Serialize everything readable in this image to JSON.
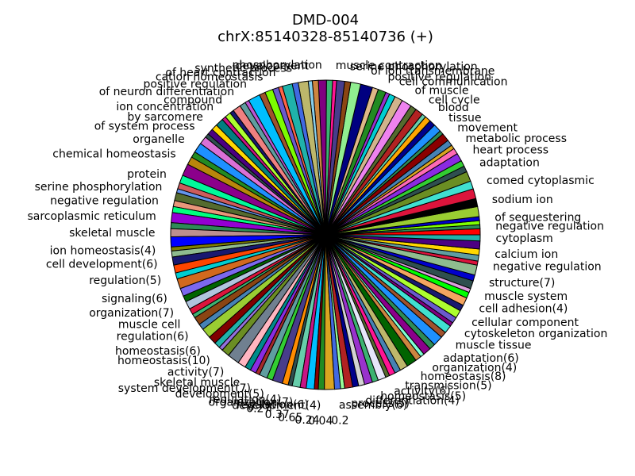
{
  "chart_data": {
    "type": "pie",
    "title": [
      "DMD-004",
      "chrX:85140328-85140736 (+)"
    ],
    "slice_count": 140,
    "outline_color": "#000000",
    "outside_labels": [
      "negative regulation",
      "of sequestering",
      "sodium ion",
      "comed cytoplasmic",
      "adaptation",
      "heart process",
      "metabolic process",
      "movement",
      "tissue",
      "blood",
      "cell cycle",
      "of muscle",
      "cell communication",
      "positive regulation",
      "of ion transmembrane",
      "serine phosphorylation",
      "muscle contraction",
      "phosphorylation",
      "development",
      "synthetic process",
      "of heart contraction",
      "cation homeostasis",
      "positive regulation",
      "of neuron differentiation",
      "compound",
      "ion concentration",
      "by sarcomere",
      "of system process",
      "organelle",
      "chemical homeostasis",
      "protein",
      "serine phosphorylation",
      "negative regulation",
      "sarcoplasmic reticulum",
      "skeletal muscle",
      "ion homeostasis(4)",
      "cell development(6)",
      "regulation(5)",
      "signaling(6)",
      "organization(7)",
      "muscle cell",
      "regulation(6)",
      "homeostasis(6)",
      "homeostasis(10)",
      "activity(7)",
      "skeletal muscle",
      "system development(7)",
      "development(5)",
      "regulation(4)",
      "organization(7)",
      "regulation(6)",
      "development(4)",
      "assembly(6)",
      "process(5)",
      "differentiation(4)",
      "homeostasis(5)",
      "activity(6)",
      "transmission(5)",
      "homeostasis(8)",
      "organization(4)",
      "adaptation(6)",
      "muscle tissue",
      "cytoskeleton organization",
      "cellular component",
      "cell adhesion(4)",
      "muscle system",
      "structure(7)",
      "negative regulation",
      "calcium ion",
      "cytoplasm"
    ],
    "value_labels": [
      "0.27",
      "0.37",
      "0.65",
      "0.24",
      "0.04",
      "0.2"
    ],
    "slice_colors": [
      "#ff0000",
      "#2e8b57",
      "#7fff00",
      "#0000cd",
      "#9acd32",
      "#000000",
      "#dc143c",
      "#40e0d0",
      "#6b8e23",
      "#2f4f4f",
      "#32cd32",
      "#8a2be2",
      "#ff69b4",
      "#daa520",
      "#4682b4",
      "#8b0000",
      "#2e8b57",
      "#1e90ff",
      "#00008b",
      "#ffa500",
      "#66cdaa",
      "#b22222",
      "#556b2f",
      "#ee82ee",
      "#d2b48c",
      "#00ced1",
      "#9932cc",
      "#228b22",
      "#deb887",
      "#000080",
      "#90ee90",
      "#8b4513",
      "#483d8b",
      "#ff1493",
      "#3cb371",
      "#800080",
      "#cd853f",
      "#87ceeb",
      "#bdb76b",
      "#4169e1",
      "#20b2aa",
      "#ff6347",
      "#6a5acd",
      "#7cfc00",
      "#a0522d",
      "#00bfff",
      "#ba55d3",
      "#5f9ea0",
      "#f08080",
      "#191970",
      "#adff2f",
      "#c71585",
      "#008080",
      "#ffd700",
      "#4b0082",
      "#2f4f4f",
      "#da70d6",
      "#1e90ff",
      "#228b22",
      "#b8860b",
      "#8b008b",
      "#00fa9a",
      "#cd5c5c",
      "#6495ed",
      "#556b2f",
      "#e9967a",
      "#00ff7f",
      "#9400d3",
      "#2e8b57",
      "#bc8f8f",
      "#0000ff",
      "#808000",
      "#8fbc8f",
      "#191970",
      "#ff4500",
      "#00ced1",
      "#d2691e",
      "#7b68ee",
      "#006400",
      "#b0c4de",
      "#dc143c",
      "#3cb371",
      "#8b4513",
      "#4682b4",
      "#9acd32",
      "#800000",
      "#20b2aa",
      "#9370db",
      "#6b8e23",
      "#708090",
      "#ffb6c1",
      "#008b8b",
      "#8a2be2",
      "#a52a2a",
      "#5f9ea0",
      "#32cd32",
      "#483d8b",
      "#ff8c00",
      "#2f4f4f",
      "#66cdaa",
      "#c71585",
      "#00bfff",
      "#8b0000",
      "#228b22",
      "#daa520",
      "#4169e1",
      "#98fb98",
      "#b22222",
      "#00008b",
      "#d3d3d3",
      "#9932cc",
      "#3cb371",
      "#e6e6fa",
      "#556b2f",
      "#ff1493",
      "#4682b4",
      "#bdb76b",
      "#006400",
      "#cd853f",
      "#7fffd4",
      "#8b008b",
      "#2e8b57",
      "#1e90ff",
      "#a0522d",
      "#40e0d0",
      "#800080",
      "#6a5acd",
      "#adff2f",
      "#191970",
      "#f4a460",
      "#00ff00",
      "#dda0dd",
      "#2f4f4f",
      "#0000cd",
      "#8fbc8f",
      "#dc143c",
      "#5f9ea0",
      "#ffd700",
      "#4b0082",
      "#20b2aa"
    ],
    "pie_values": [
      3,
      2,
      2,
      2,
      5,
      4,
      5,
      4,
      5,
      3,
      3,
      4,
      3,
      2,
      3,
      4,
      2,
      4,
      3,
      3,
      2,
      4,
      3,
      5,
      4,
      3,
      2,
      4,
      3,
      6,
      5,
      3,
      4,
      2,
      3,
      4,
      3,
      2,
      5,
      3,
      5,
      2,
      3,
      4,
      3,
      6,
      2,
      3,
      4,
      2,
      3,
      2,
      4,
      3,
      3,
      2,
      4,
      5,
      3,
      4,
      6,
      4,
      3,
      2,
      4,
      3,
      3,
      5,
      3,
      4,
      5,
      2,
      3,
      4,
      4,
      3,
      5,
      4,
      3,
      4,
      3,
      2,
      4,
      3,
      5,
      4,
      3,
      2,
      4,
      6,
      4,
      3,
      3,
      2,
      4,
      3,
      5,
      3,
      2,
      4,
      3,
      4,
      2,
      3,
      5,
      3,
      2,
      4,
      3,
      3,
      4,
      3,
      4,
      2,
      3,
      3,
      4,
      5,
      3,
      2,
      4,
      3,
      5,
      3,
      4,
      2,
      3,
      4,
      3,
      4,
      3,
      2,
      4,
      3,
      5,
      2,
      3,
      3,
      4,
      3
    ]
  }
}
